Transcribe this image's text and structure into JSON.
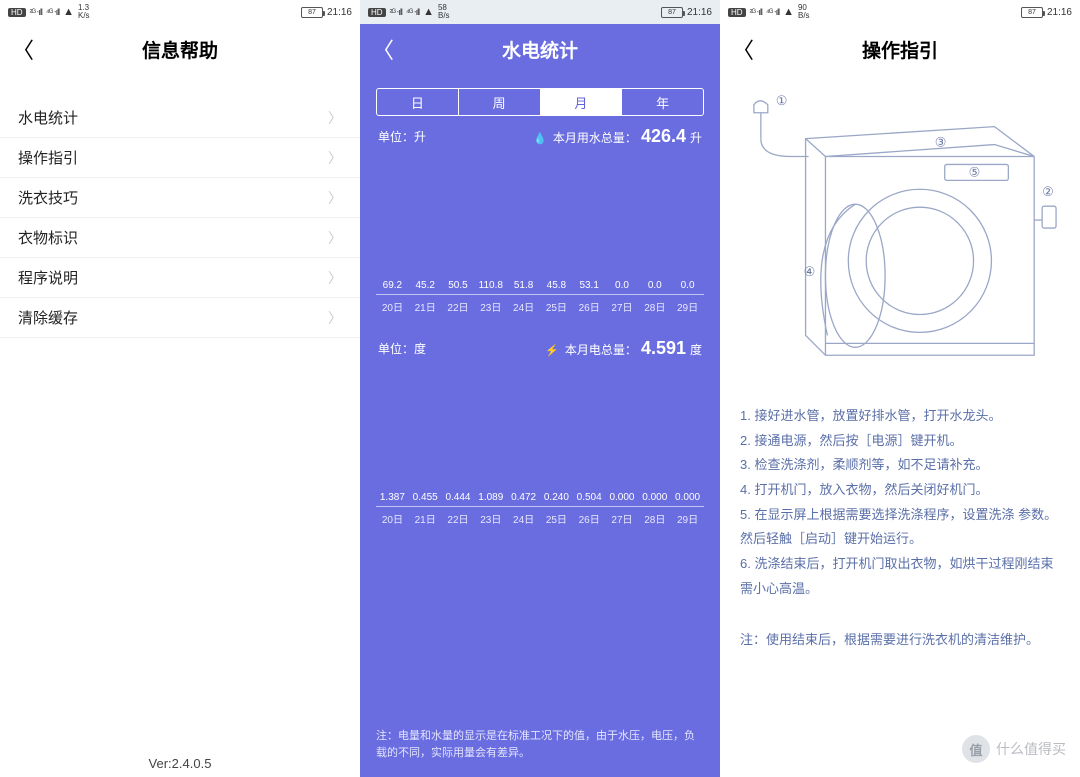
{
  "statusbar": {
    "hd": "HD",
    "signal1": "²ᴳ ‧ıll",
    "signal2": "⁴ᴳ ‧ıll",
    "wifi": "📶",
    "net1": "1.3",
    "net1_unit": "K/s",
    "net2": "58",
    "net2_unit": "B/s",
    "net3": "90",
    "net3_unit": "B/s",
    "battery": "87",
    "time": "21:16"
  },
  "left": {
    "title": "信息帮助",
    "items": [
      "水电统计",
      "操作指引",
      "洗衣技巧",
      "衣物标识",
      "程序说明",
      "清除缓存"
    ],
    "version": "Ver:2.4.0.5"
  },
  "mid": {
    "title": "水电统计",
    "tabs": [
      "日",
      "周",
      "月",
      "年"
    ],
    "active_tab_index": 2,
    "water": {
      "unit_label": "单位：升",
      "total_label": "本月用水总量：",
      "total_value": "426.4",
      "total_unit": "升",
      "icon": "💧",
      "chart": {
        "type": "bar",
        "ymax": 120,
        "bar_color": "#ffffff",
        "bg_color": "#6a6de0",
        "label_fontsize": 10,
        "categories": [
          "20日",
          "21日",
          "22日",
          "23日",
          "24日",
          "25日",
          "26日",
          "27日",
          "28日",
          "29日"
        ],
        "values": [
          69.2,
          45.2,
          50.5,
          110.8,
          51.8,
          45.8,
          53.1,
          0.0,
          0.0,
          0.0
        ],
        "value_labels": [
          "69.2",
          "45.2",
          "50.5",
          "110.8",
          "51.8",
          "45.8",
          "53.1",
          "0.0",
          "0.0",
          "0.0"
        ]
      }
    },
    "power": {
      "unit_label": "单位：度",
      "total_label": "本月电总量：",
      "total_value": "4.591",
      "total_unit": "度",
      "icon": "⚡",
      "chart": {
        "type": "bar",
        "ymax": 1.5,
        "bar_color": "#ffffff",
        "bg_color": "#6a6de0",
        "label_fontsize": 10,
        "categories": [
          "20日",
          "21日",
          "22日",
          "23日",
          "24日",
          "25日",
          "26日",
          "27日",
          "28日",
          "29日"
        ],
        "values": [
          1.387,
          0.455,
          0.444,
          1.089,
          0.472,
          0.24,
          0.504,
          0.0,
          0.0,
          0.0
        ],
        "value_labels": [
          "1.387",
          "0.455",
          "0.444",
          "1.089",
          "0.472",
          "0.240",
          "0.504",
          "0.000",
          "0.000",
          "0.000"
        ]
      }
    },
    "footnote": "注：电量和水量的显示是在标准工况下的值，由于水压，电压，负载的不同，实际用量会有差异。"
  },
  "right": {
    "title": "操作指引",
    "steps": [
      "1. 接好进水管，放置好排水管，打开水龙头。",
      "2. 接通电源，然后按［电源］键开机。",
      "3. 检查洗涤剂，柔顺剂等，如不足请补充。",
      "4. 打开机门，放入衣物，然后关闭好机门。",
      "5. 在显示屏上根据需要选择洗涤程序，设置洗涤 参数。然后轻触［启动］键开始运行。",
      "6. 洗涤结束后，打开机门取出衣物，如烘干过程刚结束需小心高温。"
    ],
    "note": "注：使用结束后，根据需要进行洗衣机的清洁维护。",
    "diagram": {
      "stroke": "#9aa7c7",
      "markers": [
        "①",
        "②",
        "③",
        "④",
        "⑤"
      ]
    }
  },
  "watermark": {
    "circle": "值",
    "text": "什么值得买"
  },
  "colors": {
    "accent": "#6a6de0",
    "panel_bg": "#ffffff",
    "page_bg": "#e8edf0",
    "list_border": "#eef0f2",
    "guide_text": "#5a6fa8"
  }
}
